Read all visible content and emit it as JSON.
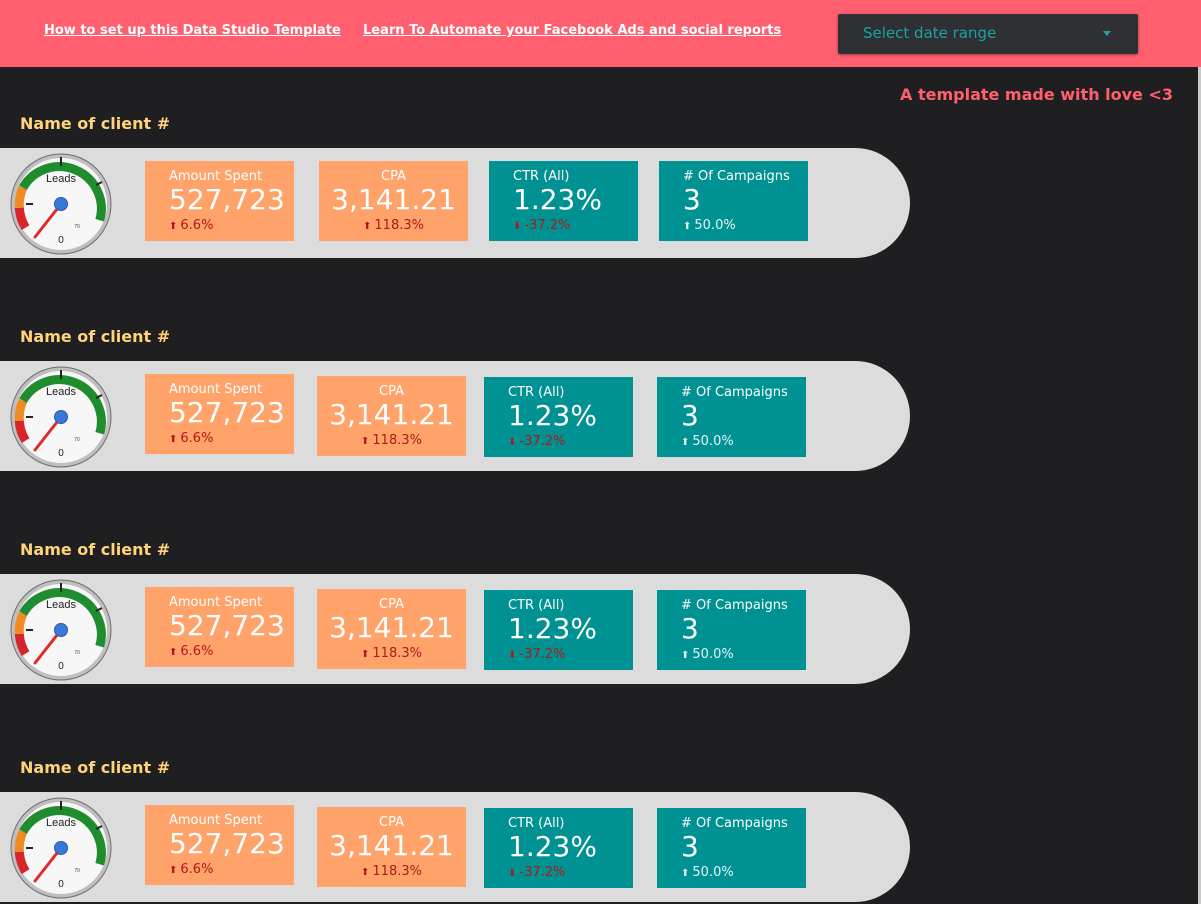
{
  "header": {
    "link1": "How to set up this Data Studio Template",
    "link2": "Learn To Automate your Facebook Ads and social reports",
    "date_placeholder": "Select date range",
    "tagline": "A template made with love <3"
  },
  "gauge": {
    "label": "Leads",
    "min_label": "0",
    "max_label": "70"
  },
  "clients": [
    {
      "name": "Name of client #",
      "amount_spent": {
        "label": "Amount Spent",
        "value": "527,723",
        "delta": "6.6%"
      },
      "cpa": {
        "label": "CPA",
        "value": "3,141.21",
        "delta": "118.3%"
      },
      "ctr": {
        "label": "CTR (All)",
        "value": "1.23%",
        "delta": "-37.2%"
      },
      "campaigns": {
        "label": "# Of Campaigns",
        "value": "3",
        "delta": "50.0%"
      }
    },
    {
      "name": "Name of client #",
      "amount_spent": {
        "label": "Amount Spent",
        "value": "527,723",
        "delta": "6.6%"
      },
      "cpa": {
        "label": "CPA",
        "value": "3,141.21",
        "delta": "118.3%"
      },
      "ctr": {
        "label": "CTR (All)",
        "value": "1.23%",
        "delta": "-37.2%"
      },
      "campaigns": {
        "label": "# Of Campaigns",
        "value": "3",
        "delta": "50.0%"
      }
    },
    {
      "name": "Name of client #",
      "amount_spent": {
        "label": "Amount Spent",
        "value": "527,723",
        "delta": "6.6%"
      },
      "cpa": {
        "label": "CPA",
        "value": "3,141.21",
        "delta": "118.3%"
      },
      "ctr": {
        "label": "CTR (All)",
        "value": "1.23%",
        "delta": "-37.2%"
      },
      "campaigns": {
        "label": "# Of Campaigns",
        "value": "3",
        "delta": "50.0%"
      }
    },
    {
      "name": "Name of client #",
      "amount_spent": {
        "label": "Amount Spent",
        "value": "527,723",
        "delta": "6.6%"
      },
      "cpa": {
        "label": "CPA",
        "value": "3,141.21",
        "delta": "118.3%"
      },
      "ctr": {
        "label": "CTR (All)",
        "value": "1.23%",
        "delta": "-37.2%"
      },
      "campaigns": {
        "label": "# Of Campaigns",
        "value": "3",
        "delta": "50.0%"
      }
    }
  ],
  "colors": {
    "header_bg": "#ff5f6f",
    "page_bg": "#1f1f21",
    "client_name": "#ffd37a",
    "card_orange": "#ffa36b",
    "card_teal": "#009292",
    "delta_negative": "#b01818"
  },
  "icons": {
    "delta_arrow": "arrow-up-icon",
    "dropdown": "chevron-down-icon"
  }
}
